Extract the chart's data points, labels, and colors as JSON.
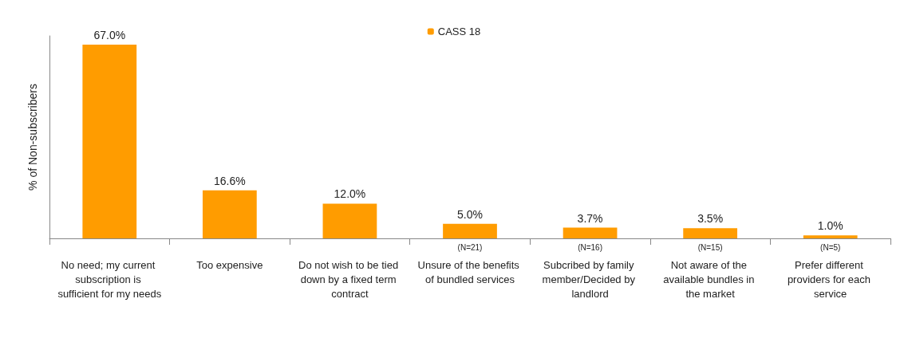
{
  "chart_data": {
    "type": "bar",
    "ylabel": "% of Non-subscribers",
    "categories": [
      "No need; my current subscription is sufficient for my needs",
      "Too expensive",
      "Do not wish to be tied down by a fixed term contract",
      "Unsure of the benefits of bundled services",
      "Subcribed by family member/Decided by landlord",
      "Not aware of the available bundles in the market",
      "Prefer different providers for each service"
    ],
    "series": [
      {
        "name": "CASS 18",
        "color": "#ff9c00",
        "values": [
          67.0,
          16.6,
          12.0,
          5.0,
          3.7,
          3.5,
          1.0
        ],
        "value_labels": [
          "67.0%",
          "16.6%",
          "12.0%",
          "5.0%",
          "3.7%",
          "3.5%",
          "1.0%"
        ]
      }
    ],
    "annotations": [
      "(N=21)",
      "(N=16)",
      "(N=15)",
      "(N=5)"
    ],
    "legend": "top",
    "grid": false,
    "tick_labels": "x"
  }
}
